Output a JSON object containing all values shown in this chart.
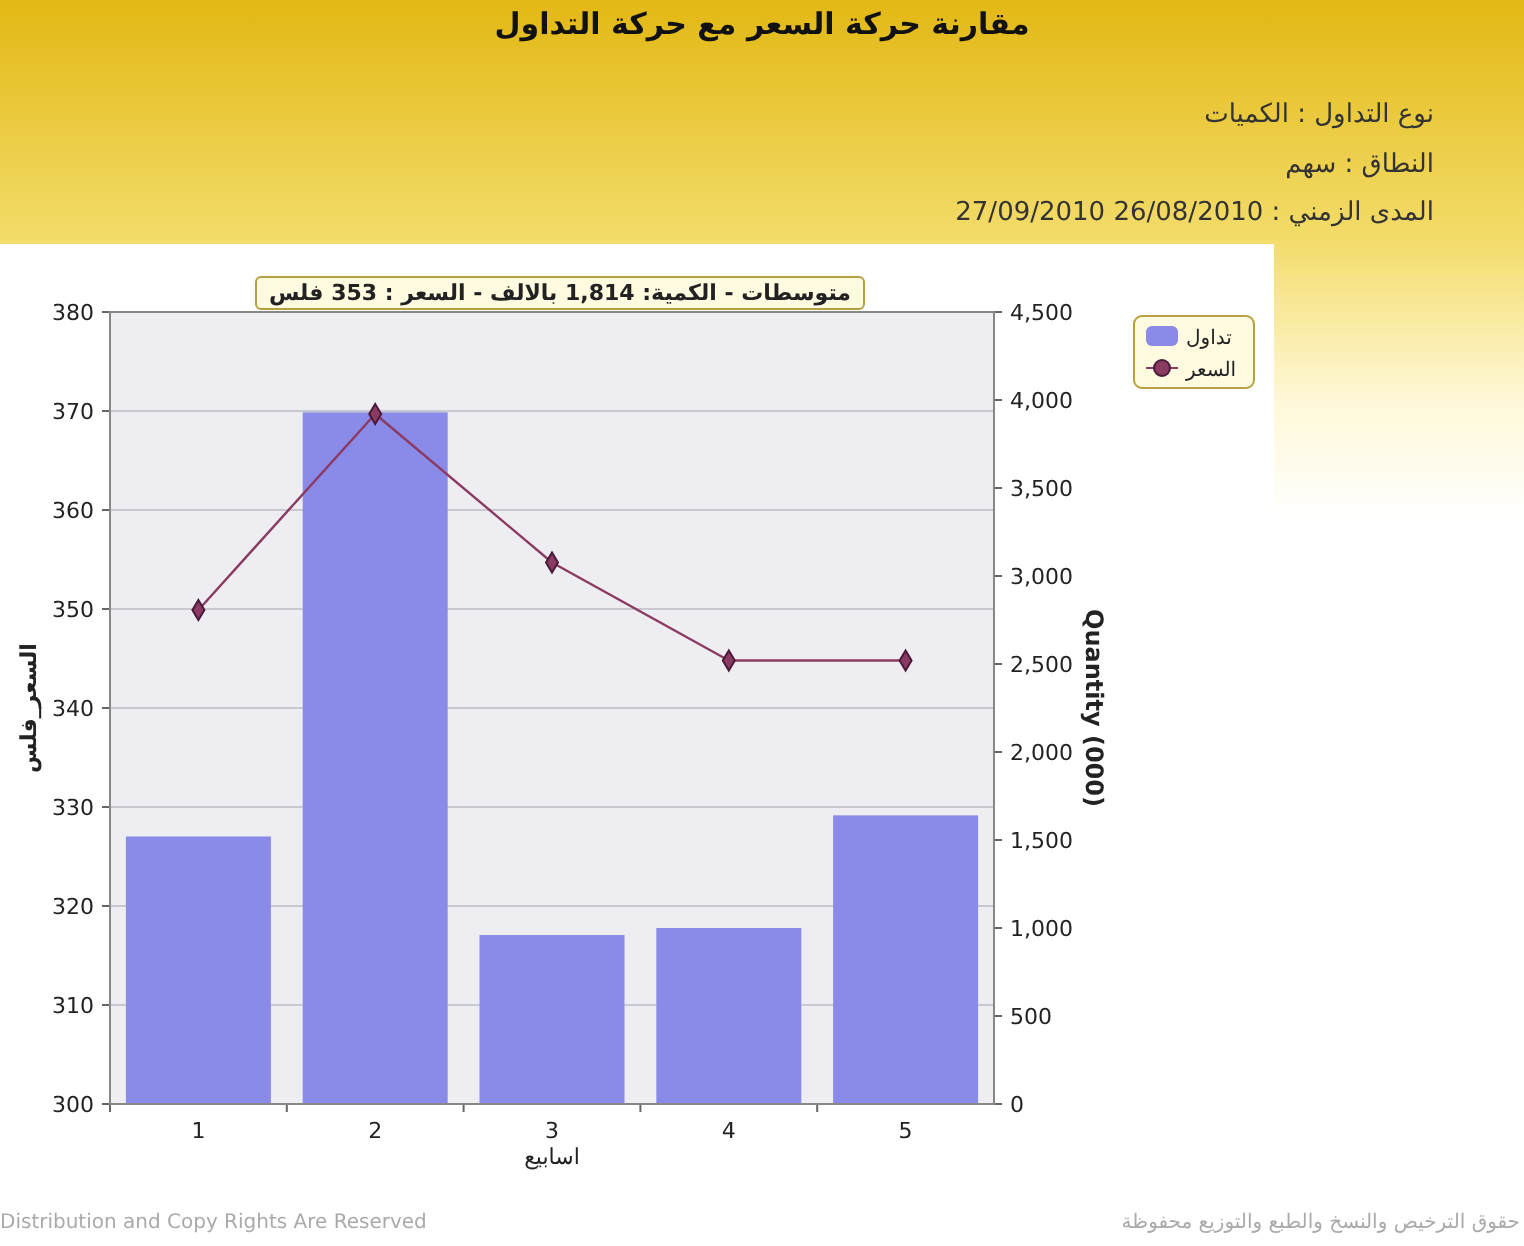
{
  "chart_data": {
    "type": "bar",
    "title": "مقارنة حركة السعر مع حركة التداول",
    "categories": [
      "1",
      "2",
      "3",
      "4",
      "5"
    ],
    "series": [
      {
        "name": "تداول",
        "axis": "y2",
        "color": "#8a8ae8",
        "values": [
          1520,
          3930,
          960,
          1000,
          1640
        ]
      },
      {
        "name": "السعر",
        "type": "line",
        "color": "#8b3a62",
        "marker": "diamond",
        "line_style": "solid",
        "values": [
          349.9,
          369.7,
          354.7,
          344.8,
          344.8
        ]
      }
    ],
    "xlabel": "اسابيع",
    "ylabel": "السعر_فلس",
    "y2label": "Quantity (000)",
    "ylim": [
      300,
      380
    ],
    "yticks": [
      300,
      310,
      320,
      330,
      340,
      350,
      360,
      370,
      380
    ],
    "y2lim": [
      0,
      4500
    ],
    "y2ticks": [
      0,
      500,
      {
        "value": 1000,
        "label": "1,000"
      },
      {
        "value": 1500,
        "label": "1,500"
      },
      {
        "value": 2000,
        "label": "2,000"
      },
      {
        "value": 2500,
        "label": "2,500"
      },
      {
        "value": 3000,
        "label": "3,000"
      },
      {
        "value": 3500,
        "label": "3,500"
      },
      {
        "value": 4000,
        "label": "4,000"
      },
      {
        "value": 4500,
        "label": "4,500"
      }
    ],
    "grid": "y",
    "legend": "top right",
    "annotations": [
      "نوع التداول : الكميات",
      "النطاق : سهم",
      "المدى الزمني : 26/08/2010 27/09/2010",
      "متوسطات - الكمية: 1,814 بالالف - السعر : 353 فلس",
      "Distribution and Copy Rights Are Reserved",
      "حقوق الترخيص والنسخ والطبع والتوزيع محفوظة"
    ]
  }
}
